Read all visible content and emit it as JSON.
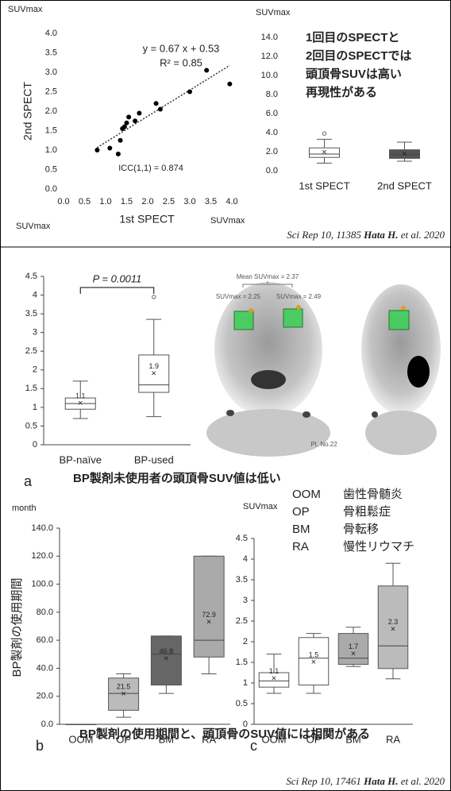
{
  "chart_data": [
    {
      "type": "scatter",
      "y_unit": "SUVmax",
      "x_unit": "SUVmax",
      "xlabel": "1st SPECT",
      "ylabel": "2nd SPECT",
      "equation": "y = 0.67 x + 0.53",
      "r2": "R² = 0.85",
      "icc": "ICC(1,1) = 0.874",
      "trendline": {
        "slope": 0.67,
        "intercept": 0.53
      },
      "color": "#000000",
      "x": [
        0.8,
        1.1,
        1.3,
        1.35,
        1.4,
        1.45,
        1.5,
        1.55,
        1.7,
        1.8,
        2.2,
        2.3,
        3.0,
        3.4,
        3.95
      ],
      "y": [
        1.0,
        1.05,
        0.9,
        1.25,
        1.55,
        1.6,
        1.7,
        1.85,
        1.75,
        1.95,
        2.2,
        2.05,
        2.5,
        3.05,
        2.7
      ],
      "xlim": [
        0,
        4
      ],
      "ylim": [
        0,
        4
      ],
      "xticks": [
        {
          "value": 0,
          "label": "0.0"
        },
        {
          "value": 0.5,
          "label": "0.5"
        },
        {
          "value": 1,
          "label": "1.0"
        },
        {
          "value": 1.5,
          "label": "1.5"
        },
        {
          "value": 2,
          "label": "2.0"
        },
        {
          "value": 2.5,
          "label": "2.5"
        },
        {
          "value": 3,
          "label": "3.0"
        },
        {
          "value": 3.5,
          "label": "3.5"
        },
        {
          "value": 4,
          "label": "4.0"
        }
      ],
      "yticks": [
        {
          "value": 0,
          "label": "0.0"
        },
        {
          "value": 0.5,
          "label": "0.5"
        },
        {
          "value": 1,
          "label": "1.0"
        },
        {
          "value": 1.5,
          "label": "1.5"
        },
        {
          "value": 2,
          "label": "2.0"
        },
        {
          "value": 2.5,
          "label": "2.5"
        },
        {
          "value": 3,
          "label": "3.0"
        },
        {
          "value": 3.5,
          "label": "3.5"
        },
        {
          "value": 4,
          "label": "4.0"
        }
      ]
    },
    {
      "type": "box",
      "y_unit": "SUVmax",
      "categories": [
        "1st SPECT",
        "2nd SPECT"
      ],
      "axes": false,
      "show_mean_labels": false,
      "boxes": [
        {
          "min": 0.8,
          "q1": 1.4,
          "median": 1.75,
          "q3": 2.4,
          "max": 3.3,
          "mean": 1.9,
          "outliers": [
            3.9
          ],
          "color": "#ffffff"
        },
        {
          "min": 1.0,
          "q1": 1.3,
          "median": 1.7,
          "q3": 2.2,
          "max": 3.0,
          "mean": 1.75,
          "outliers": [],
          "color": "#555555"
        }
      ],
      "ylim": [
        0,
        14
      ],
      "yticks": [
        {
          "value": 0,
          "label": "0.0"
        },
        {
          "value": 2,
          "label": "2.0"
        },
        {
          "value": 4,
          "label": "4.0"
        },
        {
          "value": 6,
          "label": "6.0"
        },
        {
          "value": 8,
          "label": "8.0"
        },
        {
          "value": 10,
          "label": "10.0"
        },
        {
          "value": 12,
          "label": "12.0"
        },
        {
          "value": 14,
          "label": "14.0"
        }
      ]
    },
    {
      "type": "box",
      "panel": "a",
      "y_unit": "SUVmax",
      "annotation": "P = 0.0011",
      "categories": [
        "BP-naïve",
        "BP-used"
      ],
      "axes": true,
      "show_mean_labels": true,
      "boxes": [
        {
          "min": 0.7,
          "q1": 0.95,
          "median": 1.1,
          "q3": 1.25,
          "max": 1.7,
          "mean": 1.1,
          "outliers": [],
          "color": "#ffffff"
        },
        {
          "min": 0.75,
          "q1": 1.4,
          "median": 1.6,
          "q3": 2.4,
          "max": 3.35,
          "mean": 1.9,
          "outliers": [
            3.95
          ],
          "color": "#ffffff"
        }
      ],
      "ylim": [
        0,
        4.5
      ],
      "yticks": [
        0,
        0.5,
        1,
        1.5,
        2,
        2.5,
        3,
        3.5,
        4,
        4.5
      ]
    },
    {
      "type": "box",
      "panel": "b",
      "y_unit": "month",
      "ylabel": "BP製剤の使用期間",
      "categories": [
        "OOM",
        "OP",
        "BM",
        "RA"
      ],
      "axes": true,
      "show_mean_labels": true,
      "boxes": [
        {
          "min": 0,
          "q1": 0,
          "median": 0,
          "q3": 0,
          "max": 0,
          "mean": null,
          "outliers": [],
          "color": "#ffffff"
        },
        {
          "min": 5,
          "q1": 10,
          "median": 22,
          "q3": 33,
          "max": 36,
          "mean": 21.5,
          "outliers": [],
          "color": "#bbbbbb"
        },
        {
          "min": 22,
          "q1": 28,
          "median": 50,
          "q3": 63,
          "max": 63,
          "mean": 46.8,
          "outliers": [],
          "color": "#666666"
        },
        {
          "min": 36,
          "q1": 48,
          "median": 60,
          "q3": 120,
          "max": 120,
          "mean": 72.9,
          "outliers": [],
          "color": "#aaaaaa"
        }
      ],
      "ylim": [
        0,
        140
      ],
      "yticks": [
        {
          "value": 0,
          "label": "0.0"
        },
        {
          "value": 20,
          "label": "20.0"
        },
        {
          "value": 40,
          "label": "40.0"
        },
        {
          "value": 60,
          "label": "60.0"
        },
        {
          "value": 80,
          "label": "80.0"
        },
        {
          "value": 100,
          "label": "100.0"
        },
        {
          "value": 120,
          "label": "120.0"
        },
        {
          "value": 140,
          "label": "140.0"
        }
      ]
    },
    {
      "type": "box",
      "panel": "c",
      "y_unit": "SUVmax",
      "categories": [
        "OOM",
        "OP",
        "BM",
        "RA"
      ],
      "axes": true,
      "show_mean_labels": true,
      "legend": [
        {
          "code": "OOM",
          "meaning": "歯性骨髄炎"
        },
        {
          "code": "OP",
          "meaning": "骨粗鬆症"
        },
        {
          "code": "BM",
          "meaning": "骨転移"
        },
        {
          "code": "RA",
          "meaning": "慢性リウマチ"
        }
      ],
      "boxes": [
        {
          "min": 0.75,
          "q1": 0.9,
          "median": 1.05,
          "q3": 1.25,
          "max": 1.7,
          "mean": 1.1,
          "outliers": [],
          "color": "#ffffff"
        },
        {
          "min": 0.75,
          "q1": 0.95,
          "median": 1.6,
          "q3": 2.1,
          "max": 2.2,
          "mean": 1.5,
          "outliers": [],
          "color": "#ffffff"
        },
        {
          "min": 1.4,
          "q1": 1.45,
          "median": 1.6,
          "q3": 2.2,
          "max": 2.35,
          "mean": 1.7,
          "outliers": [],
          "color": "#aaaaaa"
        },
        {
          "min": 1.1,
          "q1": 1.35,
          "median": 1.9,
          "q3": 3.35,
          "max": 3.9,
          "mean": 2.3,
          "outliers": [],
          "color": "#bbbbbb"
        }
      ],
      "ylim": [
        0,
        4.5
      ],
      "yticks": [
        0,
        0.5,
        1,
        1.5,
        2,
        2.5,
        3,
        3.5,
        4,
        4.5
      ]
    }
  ],
  "notes": {
    "top_lines": [
      "1回目のSPECTと",
      "2回目のSPECTでは",
      "頭頂骨SUVは高い",
      "再現性がある"
    ],
    "citation_1": {
      "journal": "Sci Rep 10, 11385",
      "author": "Hata H.",
      "suffix": "et al. 2020"
    },
    "caption_a": "BP製剤未使用者の頭頂骨SUV値は低い",
    "image": {
      "mean": "Mean SUVmax = 2.37",
      "left": "SUVmax = 2.25",
      "right": "SUVmax = 2.49",
      "patient": "Pt. No.22"
    },
    "caption_bc": "BP製剤の使用期間と、頭頂骨のSUV値には相関がある",
    "citation_2": {
      "journal": "Sci Rep 10, 17461",
      "author": "Hata H.",
      "suffix": "et al. 2020"
    }
  }
}
